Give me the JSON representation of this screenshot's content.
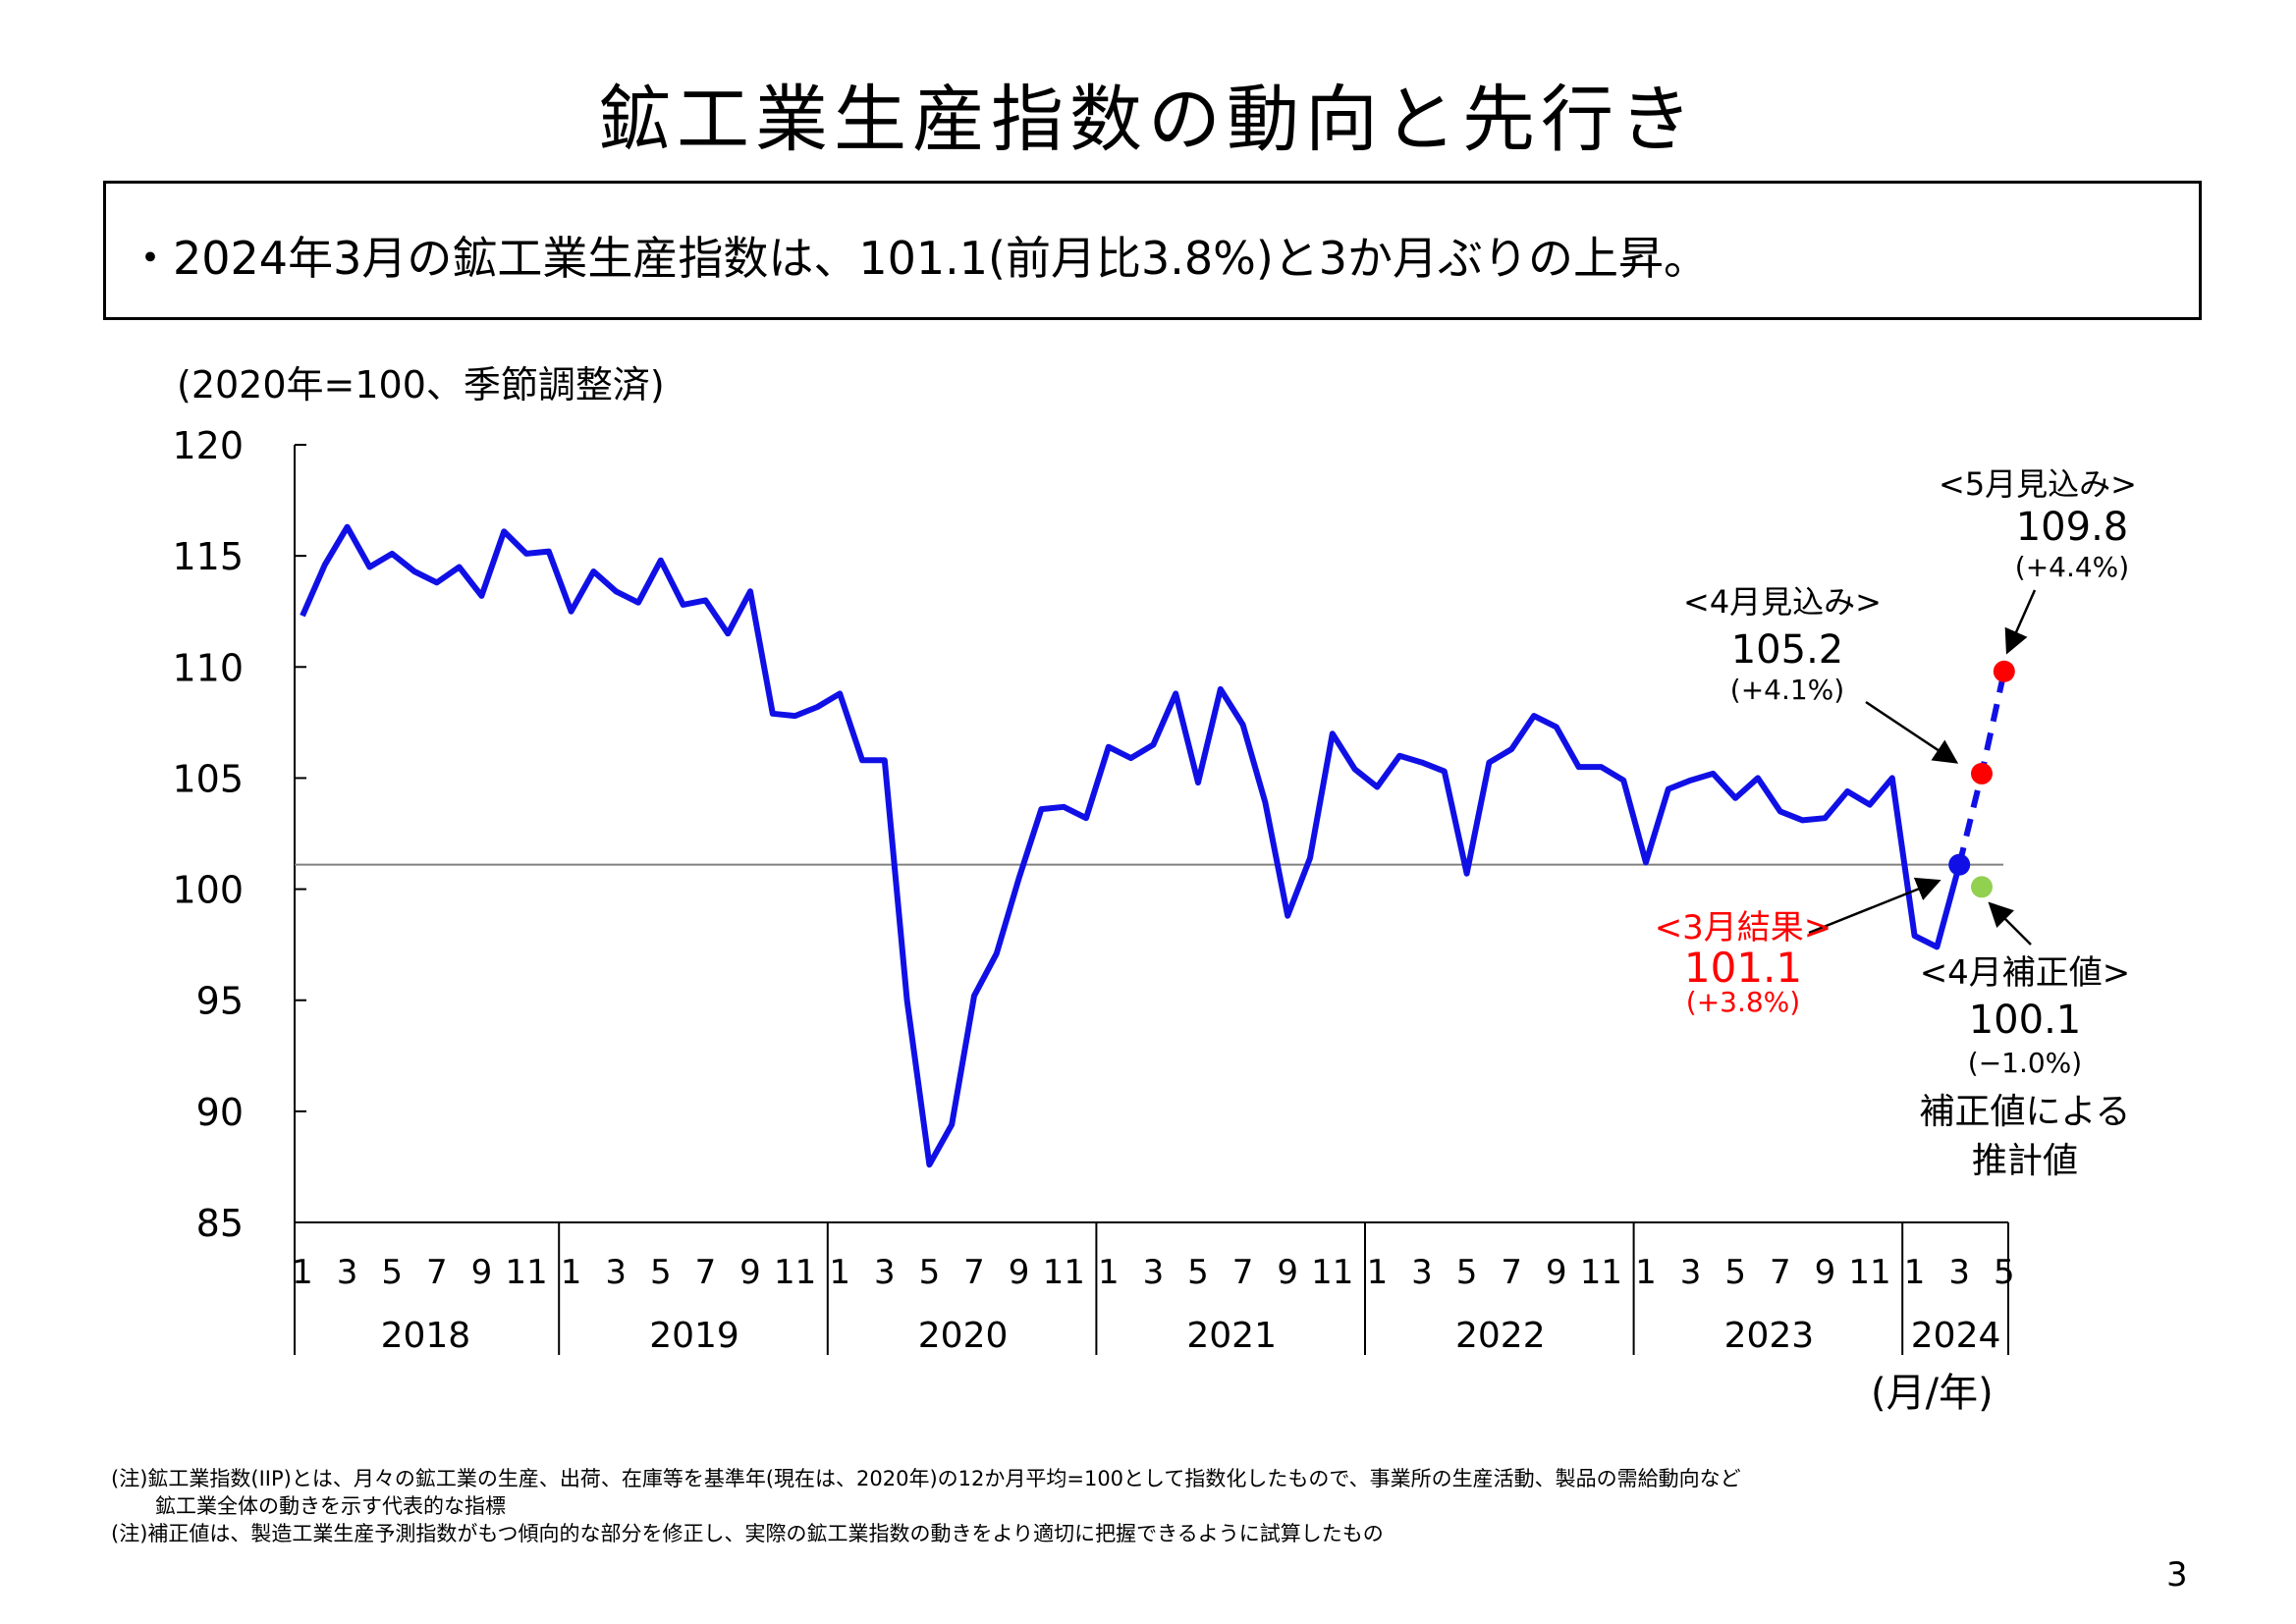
{
  "page": {
    "title": "鉱工業生産指数の動向と先行き",
    "summary": "・2024年3月の鉱工業生産指数は、101.1(前月比3.8%)と3か月ぶりの上昇。",
    "unit_note": "(2020年=100、季節調整済)",
    "axis_unit": "(月/年)",
    "notes": [
      "(注)鉱工業指数(IIP)とは、月々の鉱工業の生産、出荷、在庫等を基準年(現在は、2020年)の12か月平均=100として指数化したもので、事業所の生産活動、製品の需給動向など",
      "鉱工業全体の動きを示す代表的な指標",
      "(注)補正値は、製造工業生産予測指数がもつ傾向的な部分を修正し、実際の鉱工業指数の動きをより適切に把握できるように試算したもの"
    ],
    "page_number": "3"
  },
  "chart_data": {
    "type": "line",
    "title": "",
    "ylim": [
      85,
      120
    ],
    "yticks": [
      85,
      90,
      95,
      100,
      105,
      110,
      115,
      120
    ],
    "month_ticks": [
      "1",
      "3",
      "5",
      "7",
      "9",
      "11"
    ],
    "month_ticks_2024": [
      "1",
      "3",
      "5"
    ],
    "years": [
      "2018",
      "2019",
      "2020",
      "2021",
      "2022",
      "2023",
      "2024"
    ],
    "reference_line": 101.1,
    "colors": {
      "line": "#1010e6",
      "result": "#ff0000",
      "forecast": "#ff0000",
      "corrected": "#92d050",
      "latest_point": "#1010e6",
      "reference": "#808080"
    },
    "series": [
      {
        "start": "2018-01",
        "values": [
          112.3,
          114.6,
          116.3,
          114.5,
          115.1,
          114.3,
          113.8,
          114.5,
          113.2,
          116.1,
          115.1,
          115.2,
          112.5,
          114.3,
          113.4,
          112.9,
          114.8,
          112.8,
          113.0,
          111.5,
          113.4,
          107.9,
          107.8,
          108.2,
          108.8,
          105.8,
          105.8,
          95.0,
          87.6,
          89.4,
          95.2,
          97.1,
          100.5,
          103.6,
          103.7,
          103.2,
          106.4,
          105.9,
          106.5,
          108.8,
          104.8,
          109.0,
          107.4,
          103.9,
          98.8,
          101.4,
          107.0,
          105.4,
          104.6,
          106.0,
          105.7,
          105.3,
          100.7,
          105.7,
          106.3,
          107.8,
          107.3,
          105.5,
          105.5,
          104.9,
          101.2,
          104.5,
          104.9,
          105.2,
          104.1,
          105.0,
          103.5,
          103.1,
          103.2,
          104.4,
          103.8,
          105.0,
          97.9,
          97.4,
          101.1
        ]
      },
      {
        "type": "forecast",
        "points": [
          [
            "2024-03",
            101.1
          ],
          [
            "2024-04",
            105.2
          ],
          [
            "2024-05",
            109.8
          ]
        ]
      }
    ],
    "annotations": [
      {
        "id": "march",
        "header": "<3月結果>",
        "value": "101.1",
        "change": "(+3.8%)"
      },
      {
        "id": "april",
        "header": "<4月見込み>",
        "value": "105.2",
        "change": "(+4.1%)"
      },
      {
        "id": "may",
        "header": "<5月見込み>",
        "value": "109.8",
        "change": "(+4.4%)"
      },
      {
        "id": "corrected",
        "header": "<4月補正値>",
        "value": "100.1",
        "change": "(−1.0%)",
        "note1": "補正値による",
        "note2": "推計値"
      }
    ],
    "corrected_point": [
      "2024-04",
      100.1
    ]
  }
}
